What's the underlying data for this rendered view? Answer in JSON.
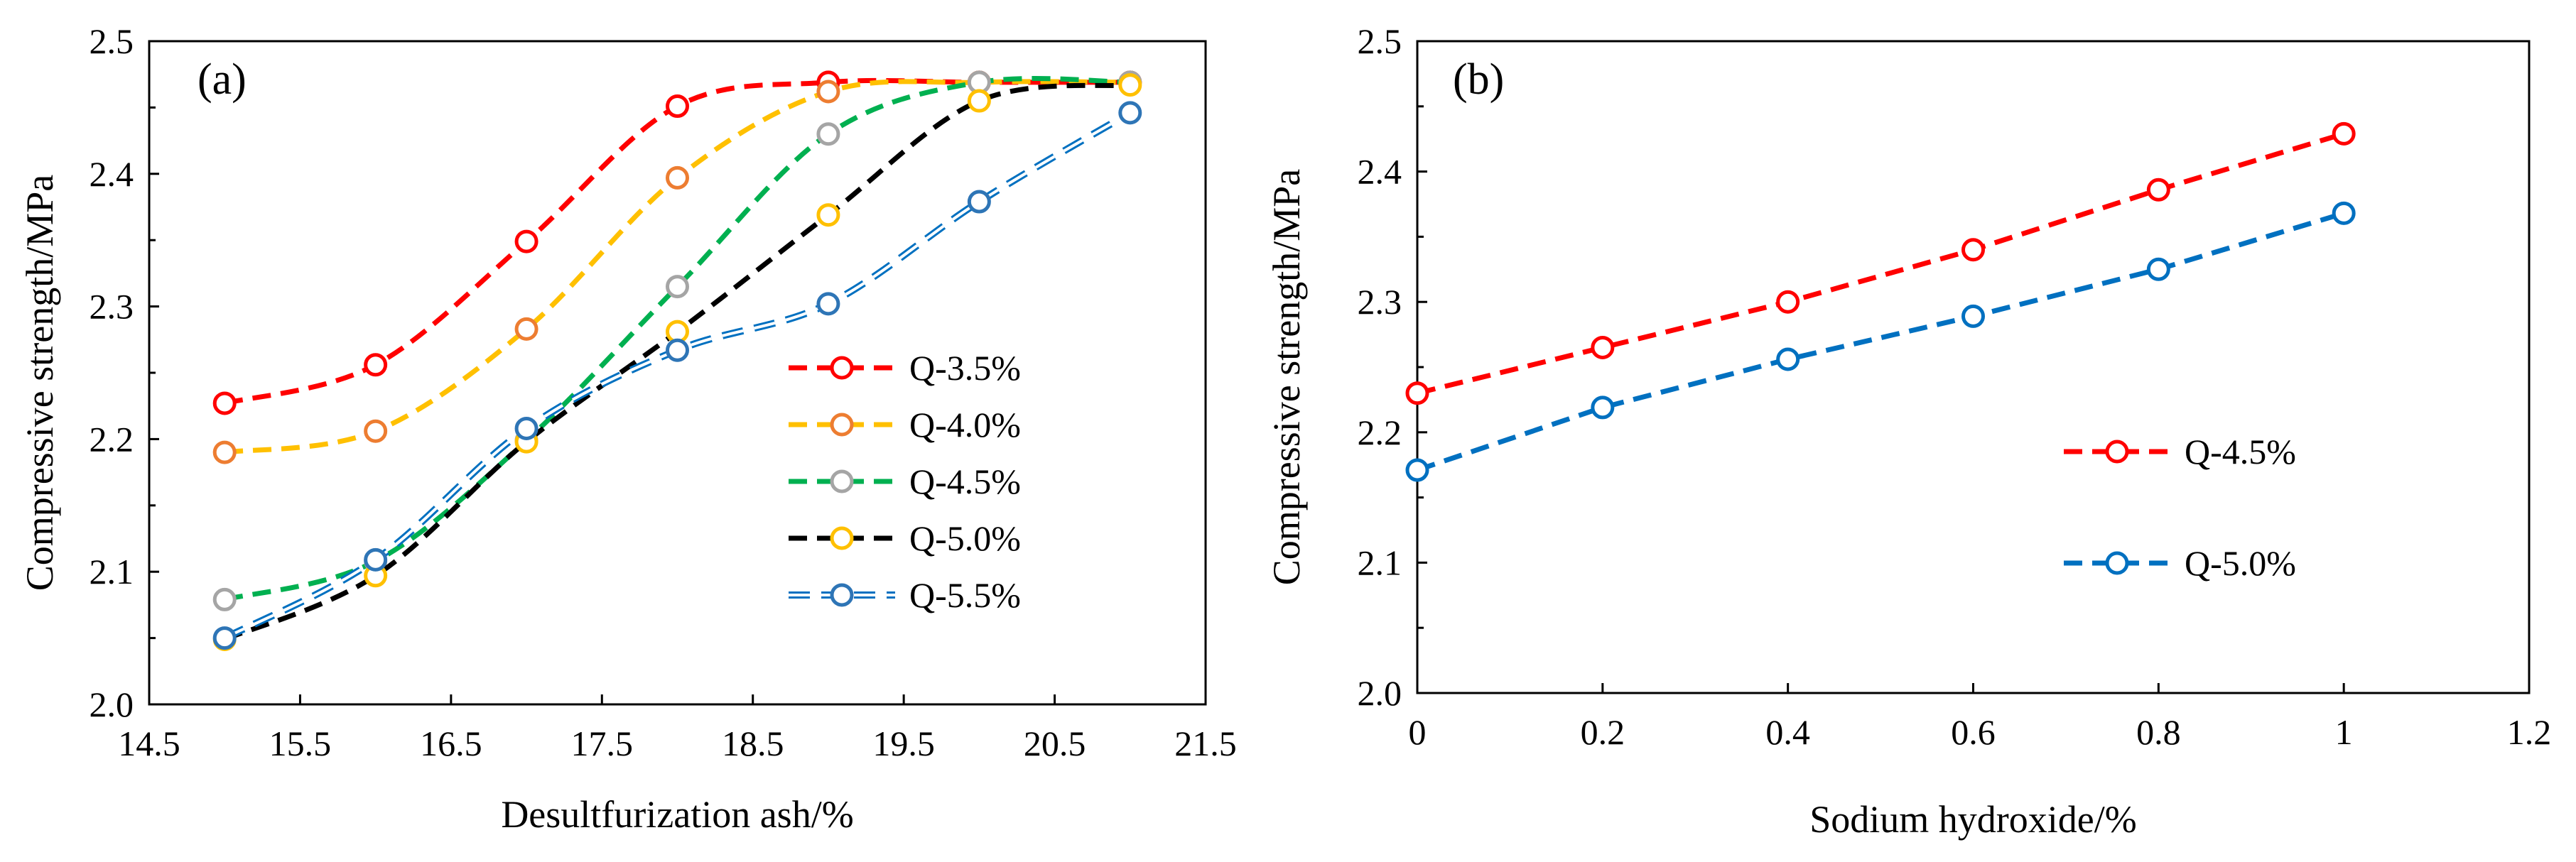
{
  "chart_data": [
    {
      "type": "line",
      "panel_label": "(a)",
      "xlabel": "Desultfurization ash/%",
      "ylabel": "Compressive strength/MPa",
      "xlim": [
        14.5,
        21.5
      ],
      "ylim": [
        2.0,
        2.5
      ],
      "x_ticks": [
        "14.5",
        "15.5",
        "16.5",
        "17.5",
        "18.5",
        "19.5",
        "20.5",
        "21.5"
      ],
      "y_ticks": [
        "2.0",
        "2.1",
        "2.2",
        "2.3",
        "2.4",
        "2.5"
      ],
      "grid": false,
      "legend_position": "bottom-right",
      "x": [
        15,
        16,
        17,
        18,
        19,
        20,
        21
      ],
      "series": [
        {
          "name": "Q-3.5%",
          "values": [
            2.227,
            2.256,
            2.349,
            2.451,
            2.469,
            2.469,
            2.469
          ],
          "line_color": "#FF0000",
          "marker_color": "#FF0000",
          "line_style": "dashed"
        },
        {
          "name": "Q-4.0%",
          "values": [
            2.19,
            2.206,
            2.283,
            2.397,
            2.462,
            2.469,
            2.469
          ],
          "line_color": "#FFC000",
          "marker_color": "#ED7D31",
          "line_style": "dashed"
        },
        {
          "name": "Q-4.5%",
          "values": [
            2.079,
            2.108,
            2.199,
            2.315,
            2.43,
            2.469,
            2.469
          ],
          "line_color": "#00B050",
          "marker_color": "#A5A5A5",
          "line_style": "dashed"
        },
        {
          "name": "Q-5.0%",
          "values": [
            2.049,
            2.097,
            2.198,
            2.281,
            2.369,
            2.455,
            2.467
          ],
          "line_color": "#000000",
          "marker_color": "#FFC000",
          "line_style": "dashed"
        },
        {
          "name": "Q-5.5%",
          "values": [
            2.05,
            2.109,
            2.208,
            2.267,
            2.302,
            2.379,
            2.446
          ],
          "line_color": "#0070C0",
          "marker_color": "#2E75B6",
          "line_style": "double-dashed"
        }
      ]
    },
    {
      "type": "line",
      "panel_label": "(b)",
      "xlabel": "Sodium hydroxide/%",
      "ylabel": "Compressive strength/MPa",
      "xlim": [
        0,
        1.2
      ],
      "ylim": [
        2.0,
        2.5
      ],
      "x_ticks": [
        "0",
        "0.2",
        "0.4",
        "0.6",
        "0.8",
        "1",
        "1.2"
      ],
      "y_ticks": [
        "2.0",
        "2.1",
        "2.2",
        "2.3",
        "2.4",
        "2.5"
      ],
      "grid": false,
      "legend_position": "middle-right",
      "x": [
        0,
        0.2,
        0.4,
        0.6,
        0.8,
        1.0
      ],
      "series": [
        {
          "name": "Q-4.5%",
          "values": [
            2.23,
            2.265,
            2.3,
            2.34,
            2.386,
            2.429
          ],
          "line_color": "#FF0000",
          "marker_color": "#FF0000",
          "line_style": "dashed"
        },
        {
          "name": "Q-5.0%",
          "values": [
            2.171,
            2.219,
            2.256,
            2.289,
            2.325,
            2.368
          ],
          "line_color": "#0070C0",
          "marker_color": "#0070C0",
          "line_style": "dashed"
        }
      ]
    }
  ]
}
